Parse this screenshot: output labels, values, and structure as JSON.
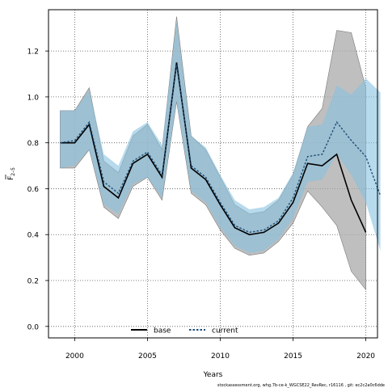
{
  "chart_data": {
    "type": "line",
    "xlabel": "Years",
    "ylabel_main": "F",
    "ylabel_sub": "2–5",
    "xlim": [
      1998.2,
      2020.8
    ],
    "ylim": [
      -0.05,
      1.38
    ],
    "xticks": [
      2000,
      2005,
      2010,
      2015,
      2020
    ],
    "yticks": [
      0.0,
      0.2,
      0.4,
      0.6,
      0.8,
      1.0,
      1.2
    ],
    "ytick_labels": [
      "0.0",
      "0.2",
      "0.4",
      "0.6",
      "0.8",
      "1.0",
      "1.2"
    ],
    "grid": true,
    "legend_position": "bottom",
    "series": [
      {
        "name": "base",
        "color": "#000000",
        "band_color": "#a9a9a9",
        "x": [
          1999,
          2000,
          2001,
          2002,
          2003,
          2004,
          2005,
          2006,
          2007,
          2008,
          2009,
          2010,
          2011,
          2012,
          2013,
          2014,
          2015,
          2016,
          2017,
          2018,
          2019,
          2020
        ],
        "values": [
          0.8,
          0.8,
          0.88,
          0.61,
          0.56,
          0.71,
          0.75,
          0.65,
          1.15,
          0.69,
          0.64,
          0.53,
          0.43,
          0.4,
          0.41,
          0.45,
          0.54,
          0.71,
          0.7,
          0.75,
          0.55,
          0.41
        ],
        "lower": [
          0.69,
          0.69,
          0.77,
          0.52,
          0.47,
          0.61,
          0.65,
          0.55,
          0.98,
          0.58,
          0.53,
          0.42,
          0.34,
          0.31,
          0.32,
          0.37,
          0.45,
          0.59,
          0.52,
          0.44,
          0.24,
          0.16
        ],
        "upper": [
          0.94,
          0.94,
          1.04,
          0.72,
          0.67,
          0.83,
          0.88,
          0.77,
          1.35,
          0.83,
          0.77,
          0.65,
          0.53,
          0.49,
          0.5,
          0.55,
          0.66,
          0.87,
          0.95,
          1.29,
          1.28,
          1.04
        ]
      },
      {
        "name": "current",
        "color": "#1f4e79",
        "band_color": "#87c2e0",
        "x": [
          1999,
          2000,
          2001,
          2002,
          2003,
          2004,
          2005,
          2006,
          2007,
          2008,
          2009,
          2010,
          2011,
          2012,
          2013,
          2014,
          2015,
          2016,
          2017,
          2018,
          2019,
          2020,
          2021
        ],
        "values": [
          0.8,
          0.81,
          0.89,
          0.63,
          0.58,
          0.72,
          0.76,
          0.66,
          1.14,
          0.7,
          0.65,
          0.54,
          0.44,
          0.41,
          0.42,
          0.46,
          0.56,
          0.74,
          0.75,
          0.89,
          0.81,
          0.74,
          0.57
        ],
        "lower": [
          0.69,
          0.7,
          0.77,
          0.53,
          0.49,
          0.62,
          0.65,
          0.56,
          0.98,
          0.59,
          0.54,
          0.43,
          0.35,
          0.32,
          0.33,
          0.38,
          0.47,
          0.63,
          0.64,
          0.75,
          0.66,
          0.54,
          0.33
        ],
        "upper": [
          0.94,
          0.94,
          1.03,
          0.75,
          0.7,
          0.85,
          0.89,
          0.79,
          1.33,
          0.83,
          0.78,
          0.66,
          0.55,
          0.51,
          0.52,
          0.56,
          0.67,
          0.87,
          0.88,
          1.05,
          1.01,
          1.08,
          1.02
        ]
      }
    ]
  },
  "legend": {
    "base_label": "base",
    "current_label": "current"
  },
  "footer": {
    "text": "stockassessment.org, whg.7b-ce-k_WGCSE22_RevRec, r16116 , git: ec2c2a0c6dde"
  }
}
